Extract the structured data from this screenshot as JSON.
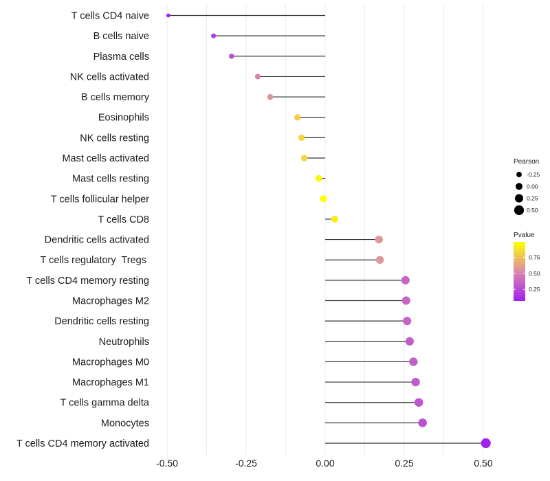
{
  "chart_data": {
    "type": "lollipop",
    "title": "",
    "xlabel": "",
    "ylabel": "",
    "xlim": [
      -0.52,
      0.52
    ],
    "x_ticks": [
      -0.5,
      -0.25,
      0,
      0.25,
      0.5
    ],
    "x_tick_labels": [
      "-0.50",
      "-0.25",
      "0.00",
      "0.25",
      "0.50"
    ],
    "grid": true,
    "categories": [
      "T cells CD4 naive",
      "B cells naive",
      "Plasma cells",
      "NK cells activated",
      "B cells memory",
      "Eosinophils",
      "NK cells resting",
      "Mast cells activated",
      "Mast cells resting",
      "T cells follicular helper",
      "T cells CD8",
      "Dendritic cells activated",
      "T cells regulatory  Tregs ",
      "T cells CD4 memory resting",
      "Macrophages M2",
      "Dendritic cells resting",
      "Neutrophils",
      "Macrophages M0",
      "Macrophages M1",
      "T cells gamma delta",
      "Monocytes",
      "T cells CD4 memory activated"
    ],
    "series": [
      {
        "name": "Pearson",
        "values": [
          -0.496,
          -0.353,
          -0.296,
          -0.213,
          -0.174,
          -0.088,
          -0.075,
          -0.066,
          -0.02,
          -0.006,
          0.03,
          0.17,
          0.173,
          0.254,
          0.256,
          0.259,
          0.267,
          0.279,
          0.286,
          0.296,
          0.308,
          0.508
        ]
      },
      {
        "name": "Pvalue",
        "values": [
          0.07,
          0.2,
          0.27,
          0.5,
          0.57,
          0.8,
          0.82,
          0.83,
          0.95,
          0.99,
          0.92,
          0.58,
          0.58,
          0.37,
          0.37,
          0.36,
          0.34,
          0.33,
          0.32,
          0.3,
          0.28,
          0.08
        ]
      }
    ],
    "legends": [
      {
        "title": "Pearson",
        "kind": "size",
        "placement": "right",
        "entries": [
          {
            "label": "-0.25",
            "value": -0.25
          },
          {
            "label": "0.00",
            "value": 0
          },
          {
            "label": "0.25",
            "value": 0.25
          },
          {
            "label": "0.50",
            "value": 0.5
          }
        ]
      },
      {
        "title": "Pvalue",
        "kind": "colorbar",
        "placement": "right",
        "range": [
          0.07,
          0.99
        ],
        "ticks": [
          0.25,
          0.5,
          0.75
        ],
        "tick_labels": [
          "0.25",
          "0.50",
          "0.75"
        ],
        "colors": {
          "low": "#a020f0",
          "mid": "#dc8aaa",
          "high": "#ffff00"
        }
      }
    ]
  }
}
